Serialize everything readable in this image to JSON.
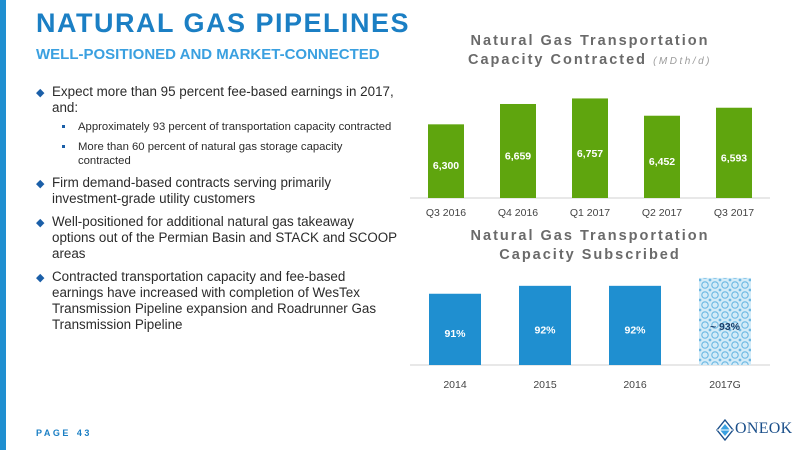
{
  "header": {
    "title": "NATURAL GAS PIPELINES",
    "subtitle": "WELL-POSITIONED AND MARKET-CONNECTED"
  },
  "bullets": [
    {
      "text": "Expect more than 95 percent fee-based earnings in 2017, and:",
      "subbullets": [
        "Approximately 93 percent of transportation capacity contracted",
        "More than 60 percent of natural gas storage capacity contracted"
      ]
    },
    {
      "text": "Firm demand-based contracts serving primarily investment-grade utility customers"
    },
    {
      "text": "Well-positioned for additional natural gas takeaway options out of the Permian Basin and STACK and SCOOP areas"
    },
    {
      "text": "Contracted transportation capacity and fee-based earnings have increased with completion of WesTex Transmission Pipeline expansion and Roadrunner Gas Transmission Pipeline"
    }
  ],
  "footer": {
    "page_label": "PAGE",
    "page_number": "43",
    "logo_text": "ONEOK"
  },
  "colors": {
    "accent_blue": "#1b7fc4",
    "bar_green": "#5fa50e",
    "bar_blue": "#1f8fd0",
    "text_gray": "#6a6a6a"
  },
  "chart_data": [
    {
      "type": "bar",
      "title_line1": "Natural Gas Transportation",
      "title_line2": "Capacity Contracted",
      "title_unit": "(MDth/d)",
      "categories": [
        "Q3 2016",
        "Q4 2016",
        "Q1 2017",
        "Q2 2017",
        "Q3 2017"
      ],
      "values": [
        6300,
        6659,
        6757,
        6452,
        6593
      ],
      "value_labels": [
        "6,300",
        "6,659",
        "6,757",
        "6,452",
        "6,593"
      ],
      "ylim": [
        5000,
        6800
      ],
      "grid": false,
      "legend": "none"
    },
    {
      "type": "bar",
      "title_line1": "Natural Gas Transportation",
      "title_line2": "Capacity Subscribed",
      "categories": [
        "2014",
        "2015",
        "2016",
        "2017G"
      ],
      "values": [
        91,
        92,
        92,
        93
      ],
      "value_labels": [
        "91%",
        "92%",
        "92%",
        "~ 93%"
      ],
      "estimated": [
        false,
        false,
        false,
        true
      ],
      "ylim": [
        82,
        94
      ],
      "grid": false,
      "legend": "none"
    }
  ]
}
